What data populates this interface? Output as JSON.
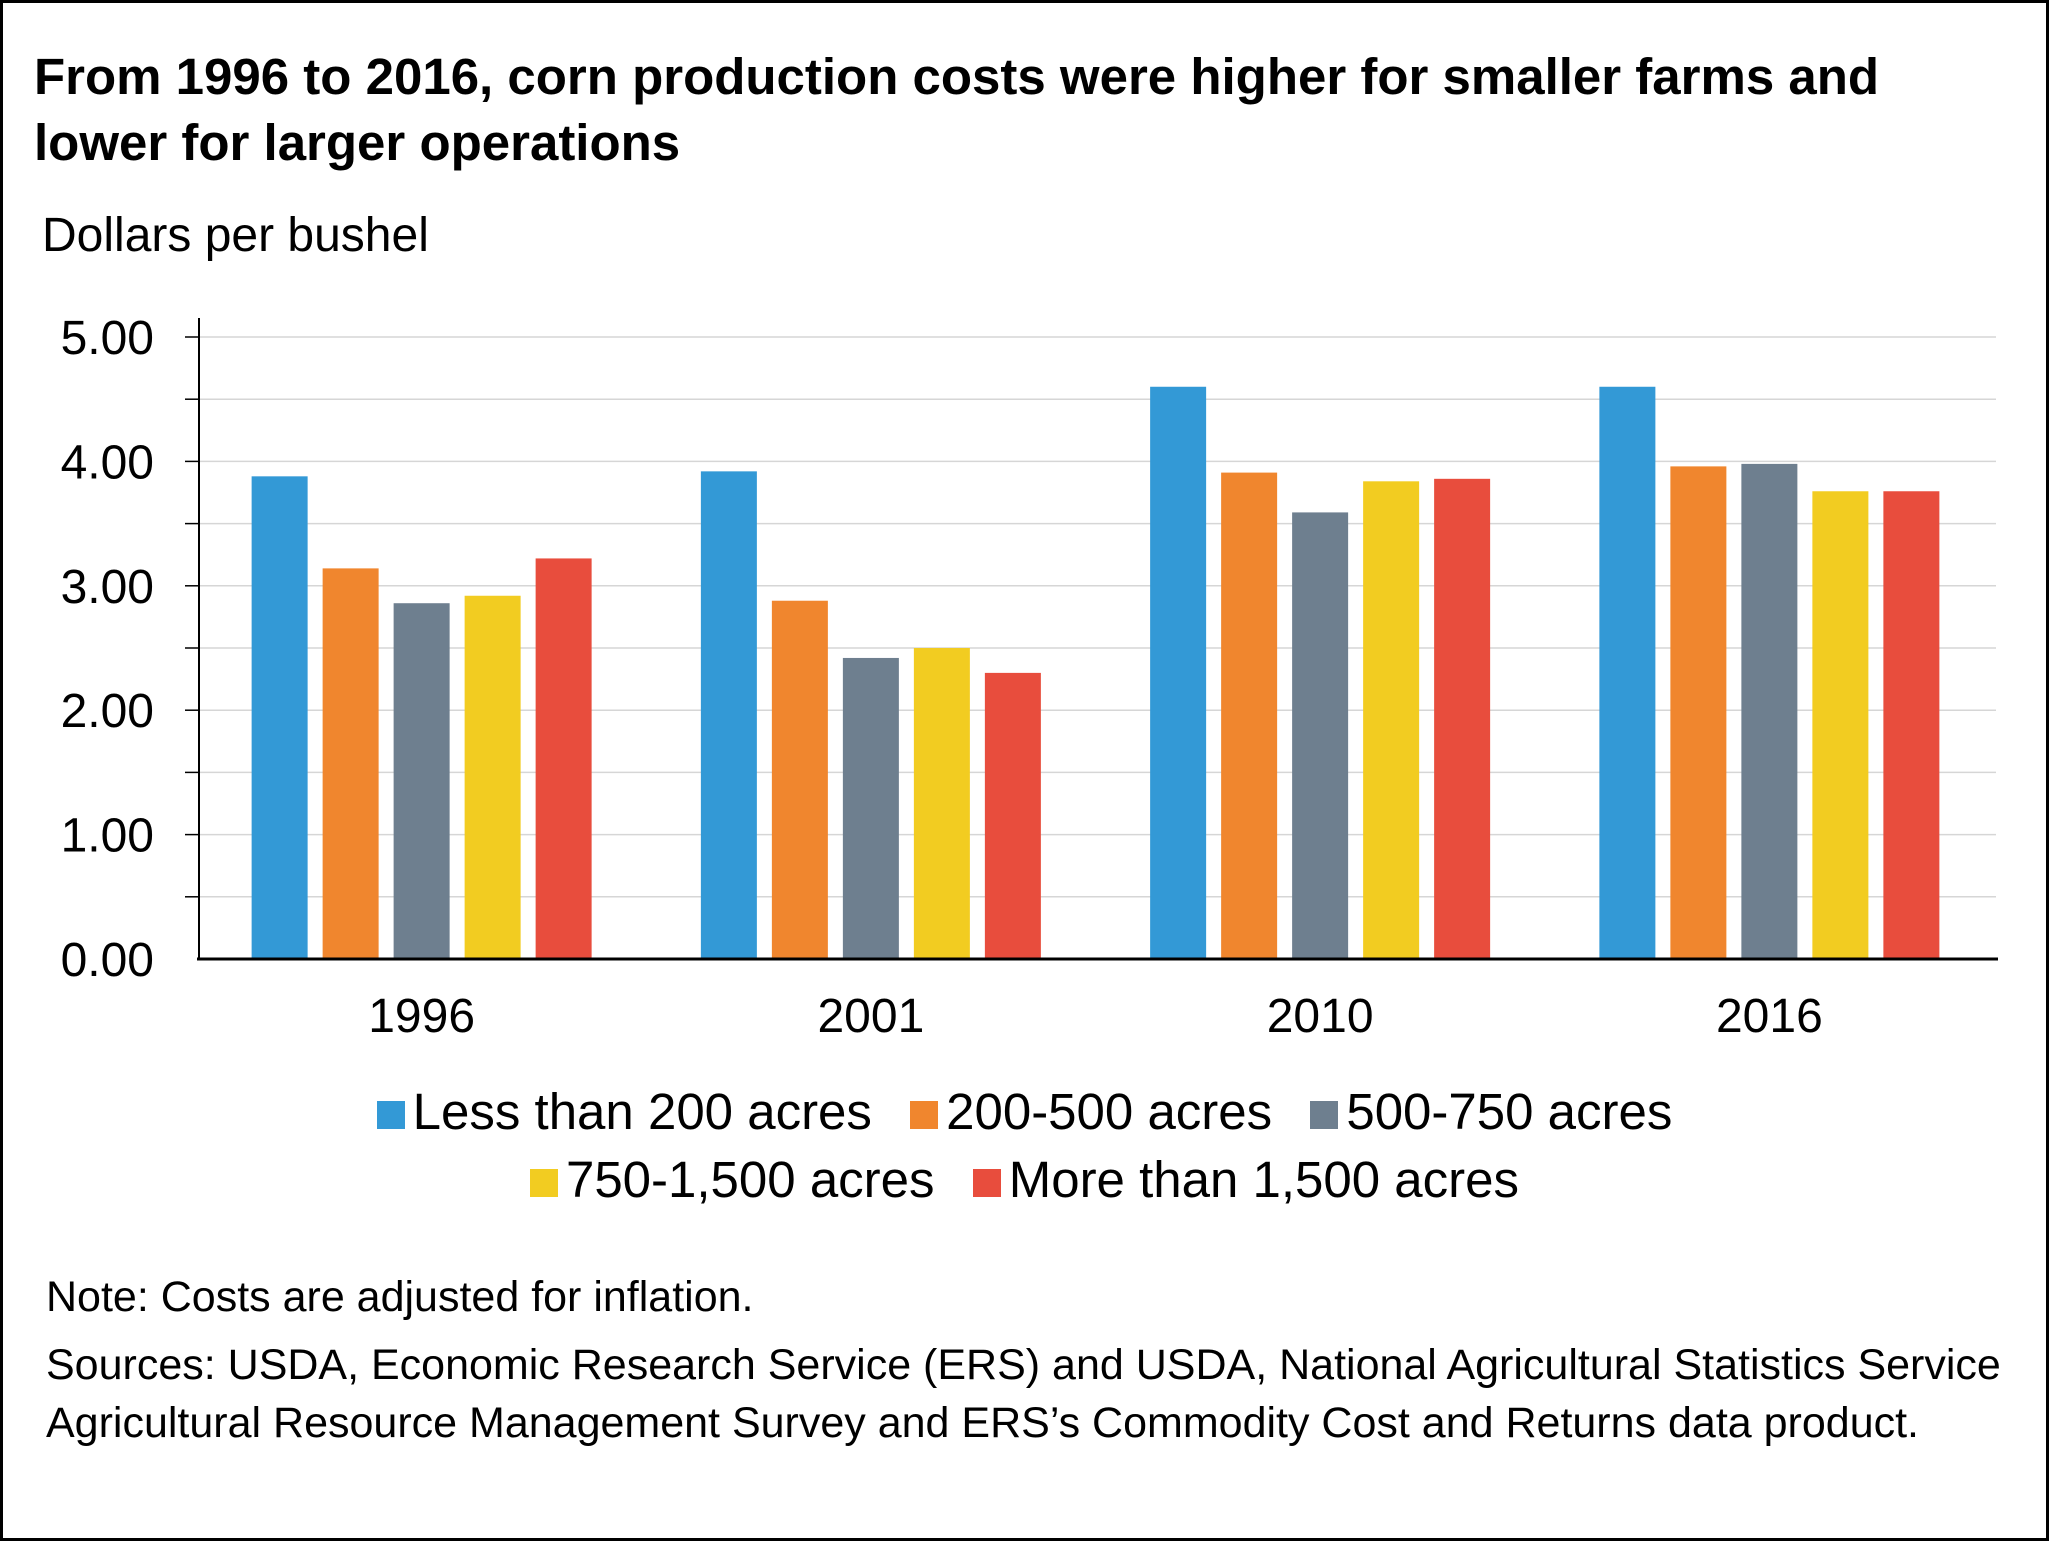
{
  "chart_data": {
    "type": "bar",
    "title": "From 1996 to 2016, corn production costs were higher for smaller farms and lower for larger operations",
    "ylabel": "Dollars per bushel",
    "xlabel": "",
    "ylim": [
      0,
      5
    ],
    "yticks": [
      "0.00",
      "1.00",
      "2.00",
      "3.00",
      "4.00",
      "5.00"
    ],
    "categories": [
      "1996",
      "2001",
      "2010",
      "2016"
    ],
    "series": [
      {
        "name": "Less than 200 acres",
        "color": "#3399d6",
        "values": [
          3.88,
          3.92,
          4.6,
          4.6
        ]
      },
      {
        "name": "200-500 acres",
        "color": "#f0862e",
        "values": [
          3.14,
          2.88,
          3.91,
          3.96
        ]
      },
      {
        "name": "500-750 acres",
        "color": "#6e7f8f",
        "values": [
          2.86,
          2.42,
          3.59,
          3.98
        ]
      },
      {
        "name": "750-1,500 acres",
        "color": "#f2cc21",
        "values": [
          2.92,
          2.5,
          3.84,
          3.76
        ]
      },
      {
        "name": "More than 1,500 acres",
        "color": "#e84d3d",
        "values": [
          3.22,
          2.3,
          3.86,
          3.76
        ]
      }
    ],
    "grid": true,
    "legend": "bottom"
  },
  "notes": {
    "note": "Note: Costs are adjusted for inflation.",
    "sources": "Sources: USDA, Economic Research Service (ERS) and USDA, National Agricultural Statistics Service Agricultural Resource Management Survey and ERS’s Commodity Cost and Returns data product."
  }
}
